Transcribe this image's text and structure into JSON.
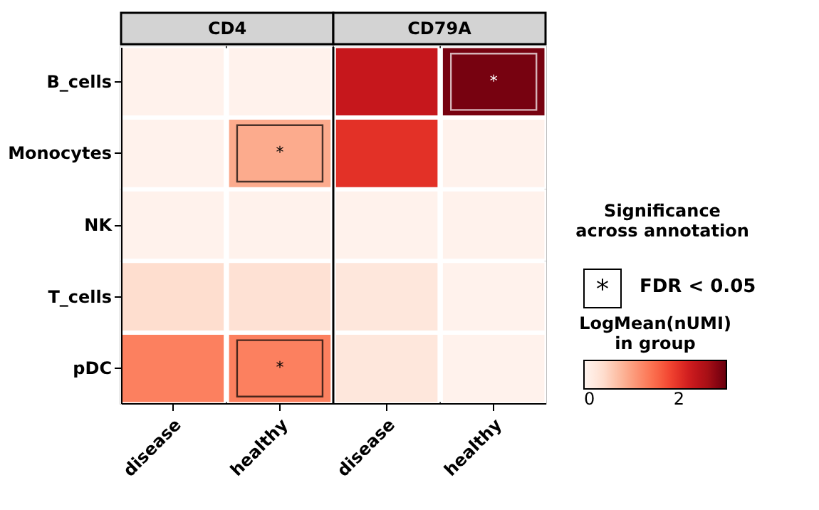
{
  "chart_data": {
    "type": "heatmap",
    "categories": [
      "disease",
      "healthy",
      "disease",
      "healthy"
    ],
    "y_categories": [
      "B_cells",
      "Monocytes",
      "NK",
      "T_cells",
      "pDC"
    ],
    "cells": [
      [
        0.05,
        0.05,
        2.3,
        2.9
      ],
      [
        0.05,
        0.9,
        2.0,
        0.05
      ],
      [
        0.05,
        0.05,
        0.05,
        0.05
      ],
      [
        0.4,
        0.35,
        0.25,
        0.05
      ],
      [
        1.3,
        1.3,
        0.25,
        0.05
      ]
    ],
    "cell_labels": [
      [
        null,
        null,
        null,
        "*"
      ],
      [
        null,
        "*",
        null,
        null
      ],
      [
        null,
        null,
        null,
        null
      ],
      [
        null,
        null,
        null,
        null
      ],
      [
        null,
        "*",
        null,
        null
      ]
    ],
    "clim": [
      0,
      3
    ],
    "cticks": [
      0,
      2
    ],
    "clabel": "LogMean(nUMI)\nin group",
    "annotations": [
      "CD4",
      "CD79A",
      "Significance\nacross annotation",
      "*",
      "FDR < 0.05"
    ]
  }
}
